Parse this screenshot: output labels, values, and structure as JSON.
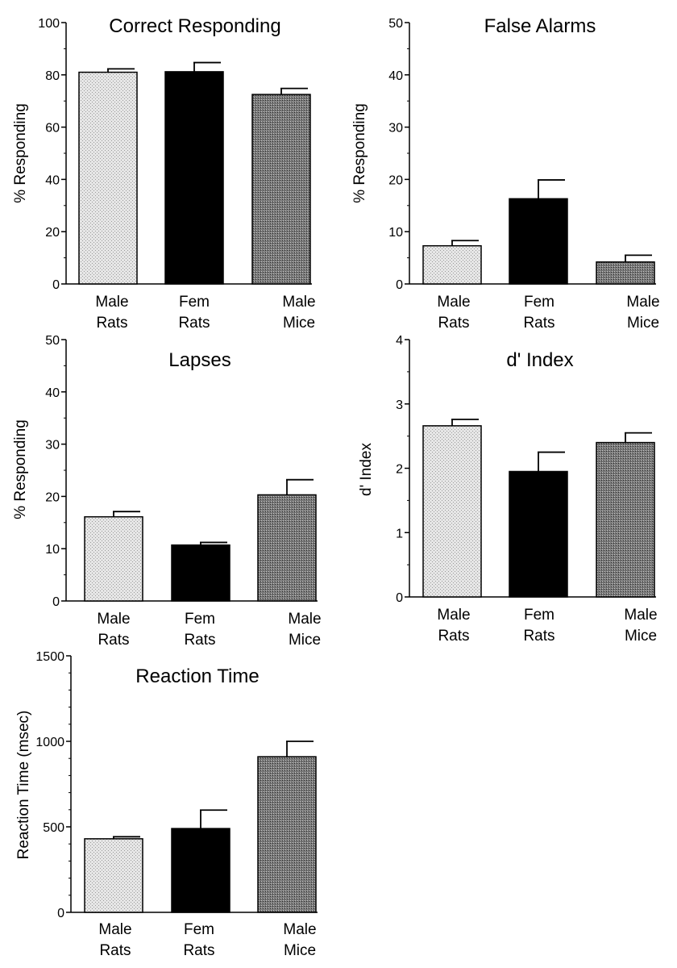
{
  "colors": {
    "male_rats": "#e2e2e2",
    "fem_rats": "#000000",
    "male_mice": "#8c8c8c",
    "axis": "#000000"
  },
  "categories": [
    [
      "Male",
      "Rats"
    ],
    [
      "Fem",
      "Rats"
    ],
    [
      "Male",
      "Mice"
    ]
  ],
  "chart_data": [
    {
      "type": "bar",
      "title": "Correct Responding",
      "ylabel": "% Responding",
      "ylim": [
        0,
        100
      ],
      "yticks": [
        0,
        20,
        40,
        60,
        80,
        100
      ],
      "ytick_labels": [
        "0",
        "20",
        "40",
        "60",
        "80",
        "100"
      ],
      "minor_step": 10,
      "categories": [
        "Male Rats",
        "Fem Rats",
        "Male Mice"
      ],
      "values": [
        81,
        81.2,
        72.5
      ],
      "errors": [
        1.3,
        3.5,
        2.3
      ]
    },
    {
      "type": "bar",
      "title": "False Alarms",
      "ylabel": "% Responding",
      "ylim": [
        0,
        50
      ],
      "yticks": [
        0,
        10,
        20,
        30,
        40,
        50
      ],
      "ytick_labels": [
        "0",
        "10",
        "20",
        "30",
        "40",
        "50"
      ],
      "minor_step": 5,
      "categories": [
        "Male Rats",
        "Fem Rats",
        "Male Mice"
      ],
      "values": [
        7.3,
        16.3,
        4.2
      ],
      "errors": [
        1.0,
        3.6,
        1.3
      ]
    },
    {
      "type": "bar",
      "title": "Lapses",
      "ylabel": "% Responding",
      "ylim": [
        0,
        50
      ],
      "yticks": [
        0,
        10,
        20,
        30,
        40,
        50
      ],
      "ytick_labels": [
        "0",
        "10",
        "20",
        "30",
        "40",
        "50"
      ],
      "minor_step": 5,
      "categories": [
        "Male Rats",
        "Fem Rats",
        "Male Mice"
      ],
      "values": [
        16.1,
        10.7,
        20.3
      ],
      "errors": [
        1.0,
        0.5,
        2.9
      ]
    },
    {
      "type": "bar",
      "title": "d' Index",
      "ylabel": "d' Index",
      "ylim": [
        0,
        4
      ],
      "yticks": [
        0,
        1,
        2,
        3,
        4
      ],
      "ytick_labels": [
        "0",
        "1",
        "2",
        "3",
        "4"
      ],
      "minor_step": 0.5,
      "categories": [
        "Male Rats",
        "Fem Rats",
        "Male Mice"
      ],
      "values": [
        2.66,
        1.95,
        2.4
      ],
      "errors": [
        0.1,
        0.3,
        0.15
      ]
    },
    {
      "type": "bar",
      "title": "Reaction Time",
      "ylabel": "Reaction Time (msec)",
      "ylim": [
        0,
        1500
      ],
      "yticks": [
        0,
        500,
        1000,
        1500
      ],
      "ytick_labels": [
        "0",
        "500",
        "1000",
        "1500"
      ],
      "minor_step": 100,
      "categories": [
        "Male Rats",
        "Fem Rats",
        "Male Mice"
      ],
      "values": [
        430,
        490,
        910
      ],
      "errors": [
        12,
        108,
        90
      ]
    }
  ]
}
